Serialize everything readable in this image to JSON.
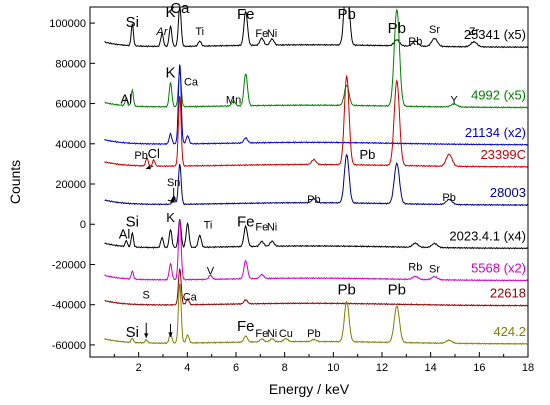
{
  "chart_data": {
    "type": "line",
    "xlabel": "Energy / keV",
    "ylabel": "Counts",
    "xlim": [
      0,
      18
    ],
    "ylim": [
      -66000,
      108000
    ],
    "x_ticks": [
      2,
      4,
      6,
      8,
      10,
      12,
      14,
      16,
      18
    ],
    "x_tick_labels": [
      "2",
      "4",
      "6",
      "8",
      "10",
      "12",
      "14",
      "16",
      "18"
    ],
    "y_ticks": [
      -60000,
      -40000,
      -20000,
      0,
      20000,
      40000,
      60000,
      80000,
      100000
    ],
    "y_tick_labels": [
      "-60000",
      "-40000",
      "-20000",
      "0",
      "20000",
      "40000",
      "60000",
      "80000",
      "100000"
    ],
    "series": [
      {
        "name": "25341 (x5)",
        "color": "#000000",
        "baseline": 88000,
        "peaks": [
          [
            1.74,
            11000
          ],
          [
            2.96,
            6500
          ],
          [
            3.31,
            10000
          ],
          [
            3.69,
            20000
          ],
          [
            4.51,
            2500
          ],
          [
            6.4,
            17000
          ],
          [
            7.06,
            3500
          ],
          [
            7.48,
            3000
          ],
          [
            10.55,
            38000
          ],
          [
            12.61,
            3000
          ],
          [
            13.37,
            2500
          ],
          [
            14.16,
            4000
          ],
          [
            15.78,
            2500
          ]
        ],
        "labels_y": [
          96000,
          96000,
          96000,
          96000,
          96000,
          96000,
          96000,
          96000,
          96000,
          96000,
          96000,
          96000,
          96000
        ]
      },
      {
        "name": "4992 (x5)",
        "color": "#008000",
        "baseline": 58000,
        "peaks": [
          [
            1.49,
            4000
          ],
          [
            1.74,
            8000
          ],
          [
            3.31,
            12000
          ],
          [
            3.69,
            18000
          ],
          [
            5.9,
            2500
          ],
          [
            6.4,
            16000
          ],
          [
            10.55,
            10000
          ],
          [
            12.61,
            48000
          ],
          [
            14.96,
            1500
          ]
        ],
        "labels_y": []
      },
      {
        "name": "21134 (x2)",
        "color": "#0000cc",
        "baseline": 39500,
        "peaks": [
          [
            3.31,
            5000
          ],
          [
            3.69,
            40000
          ],
          [
            4.01,
            4000
          ],
          [
            6.4,
            2500
          ]
        ],
        "labels_y": []
      },
      {
        "name": "23399C",
        "color": "#cc0000",
        "baseline": 28500,
        "peaks": [
          [
            2.34,
            4000
          ],
          [
            2.62,
            3000
          ],
          [
            3.69,
            35000
          ],
          [
            9.2,
            2500
          ],
          [
            10.55,
            44000
          ],
          [
            12.61,
            42000
          ],
          [
            14.76,
            6000
          ]
        ],
        "labels_y": []
      },
      {
        "name": "28003",
        "color": "#000080",
        "baseline": 9500,
        "peaks": [
          [
            3.44,
            4000
          ],
          [
            3.69,
            20000
          ],
          [
            9.2,
            2000
          ],
          [
            10.55,
            24000
          ],
          [
            12.61,
            20000
          ],
          [
            14.76,
            2500
          ]
        ],
        "labels_y": []
      },
      {
        "name": "2023.4.1 (x4)",
        "color": "#000000",
        "baseline": -12000,
        "peaks": [
          [
            1.49,
            3000
          ],
          [
            1.74,
            7000
          ],
          [
            2.96,
            5000
          ],
          [
            3.31,
            9000
          ],
          [
            3.69,
            14000
          ],
          [
            4.01,
            12000
          ],
          [
            4.51,
            6000
          ],
          [
            6.4,
            10000
          ],
          [
            7.06,
            2500
          ],
          [
            7.48,
            2500
          ],
          [
            13.37,
            2000
          ],
          [
            14.16,
            2000
          ]
        ],
        "labels_y": []
      },
      {
        "name": "5568 (x2)",
        "color": "#cc00cc",
        "baseline": -28000,
        "peaks": [
          [
            1.74,
            4000
          ],
          [
            3.31,
            8000
          ],
          [
            3.69,
            30000
          ],
          [
            4.95,
            2000
          ],
          [
            6.4,
            9000
          ],
          [
            7.06,
            2000
          ],
          [
            13.37,
            1500
          ],
          [
            14.16,
            1500
          ]
        ],
        "labels_y": []
      },
      {
        "name": "22618",
        "color": "#8b0000",
        "baseline": -40500,
        "peaks": [
          [
            3.69,
            18000
          ],
          [
            4.01,
            3000
          ],
          [
            6.4,
            2000
          ]
        ],
        "labels_y": []
      },
      {
        "name": "424.2",
        "color": "#808000",
        "baseline": -59500,
        "peaks": [
          [
            1.74,
            2000
          ],
          [
            2.31,
            1500
          ],
          [
            3.31,
            5000
          ],
          [
            3.69,
            30000
          ],
          [
            4.01,
            4000
          ],
          [
            6.4,
            3000
          ],
          [
            7.06,
            1500
          ],
          [
            7.48,
            1500
          ],
          [
            8.05,
            1500
          ],
          [
            9.2,
            1000
          ],
          [
            10.55,
            20000
          ],
          [
            12.61,
            18000
          ],
          [
            14.76,
            1500
          ]
        ],
        "labels_y": []
      }
    ],
    "annotations": [
      {
        "text": "Si",
        "x": 1.74,
        "y": 98000,
        "size": 15
      },
      {
        "text": "K",
        "x": 3.31,
        "y": 103000,
        "size": 15
      },
      {
        "text": "Ca",
        "x": 3.69,
        "y": 105000,
        "size": 15
      },
      {
        "text": "Ar",
        "x": 2.96,
        "y": 94000,
        "size": 11,
        "italic": true
      },
      {
        "text": "Ti",
        "x": 4.51,
        "y": 94000,
        "size": 11
      },
      {
        "text": "Fe",
        "x": 6.4,
        "y": 102000,
        "size": 15
      },
      {
        "text": "Fe",
        "x": 7.06,
        "y": 93000,
        "size": 11
      },
      {
        "text": "Ni",
        "x": 7.48,
        "y": 93000,
        "size": 11
      },
      {
        "text": "Pb",
        "x": 10.55,
        "y": 102000,
        "size": 15
      },
      {
        "text": "Pb",
        "x": 12.61,
        "y": 95000,
        "size": 15
      },
      {
        "text": "Rb",
        "x": 13.37,
        "y": 89000,
        "size": 11
      },
      {
        "text": "Sr",
        "x": 14.16,
        "y": 95000,
        "size": 11
      },
      {
        "text": "Zr",
        "x": 15.78,
        "y": 94000,
        "size": 11
      },
      {
        "text": "Al",
        "x": 1.49,
        "y": 60000,
        "size": 13
      },
      {
        "text": "K",
        "x": 3.31,
        "y": 73000,
        "size": 15
      },
      {
        "text": "Ca",
        "x": 4.15,
        "y": 69000,
        "size": 11
      },
      {
        "text": "Mn",
        "x": 5.9,
        "y": 60000,
        "size": 11
      },
      {
        "text": "Y",
        "x": 14.96,
        "y": 60000,
        "size": 11
      },
      {
        "text": "Pb",
        "x": 2.1,
        "y": 32500,
        "size": 11
      },
      {
        "text": "Cl",
        "x": 2.62,
        "y": 33000,
        "size": 13
      },
      {
        "text": "Pb",
        "x": 11.4,
        "y": 32500,
        "size": 13
      },
      {
        "text": "Pb",
        "x": 9.2,
        "y": 10500,
        "size": 11
      },
      {
        "text": "Pb",
        "x": 14.76,
        "y": 11500,
        "size": 11
      },
      {
        "text": "Sn",
        "x": 3.44,
        "y": 19000,
        "size": 11
      },
      {
        "text": "Si",
        "x": 1.74,
        "y": -1000,
        "size": 15
      },
      {
        "text": "Al",
        "x": 1.42,
        "y": -7000,
        "size": 13
      },
      {
        "text": "K",
        "x": 3.31,
        "y": 1000,
        "size": 13
      },
      {
        "text": "Ti",
        "x": 4.85,
        "y": -2000,
        "size": 11
      },
      {
        "text": "Fe",
        "x": 6.4,
        "y": -1000,
        "size": 15
      },
      {
        "text": "Fe",
        "x": 7.06,
        "y": -3000,
        "size": 11
      },
      {
        "text": "Ni",
        "x": 7.48,
        "y": -3000,
        "size": 11
      },
      {
        "text": "V",
        "x": 4.95,
        "y": -25000,
        "size": 11
      },
      {
        "text": "Rb",
        "x": 13.37,
        "y": -23000,
        "size": 11
      },
      {
        "text": "Sr",
        "x": 14.16,
        "y": -24000,
        "size": 11
      },
      {
        "text": "S",
        "x": 2.31,
        "y": -37000,
        "size": 11
      },
      {
        "text": "Ca",
        "x": 4.1,
        "y": -38000,
        "size": 11
      },
      {
        "text": "Pb",
        "x": 10.55,
        "y": -35000,
        "size": 15
      },
      {
        "text": "Pb",
        "x": 12.61,
        "y": -35000,
        "size": 15
      },
      {
        "text": "Si",
        "x": 1.74,
        "y": -56000,
        "size": 15
      },
      {
        "text": "Fe",
        "x": 6.4,
        "y": -53000,
        "size": 15
      },
      {
        "text": "Fe",
        "x": 7.06,
        "y": -56000,
        "size": 11
      },
      {
        "text": "Ni",
        "x": 7.48,
        "y": -56000,
        "size": 11
      },
      {
        "text": "Cu",
        "x": 8.05,
        "y": -56000,
        "size": 11
      },
      {
        "text": "Pb",
        "x": 9.2,
        "y": -56000,
        "size": 11
      }
    ],
    "arrows": [
      {
        "x1": 2.6,
        "y1": 29000,
        "x2": 2.3,
        "y2": 27500
      },
      {
        "x1": 3.44,
        "y1": 18000,
        "x2": 3.44,
        "y2": 11000
      },
      {
        "x1": 3.2,
        "y1": 12000,
        "x2": 3.5,
        "y2": 11000
      },
      {
        "x1": 2.31,
        "y1": -49000,
        "x2": 2.31,
        "y2": -56500
      },
      {
        "x1": 3.31,
        "y1": -49500,
        "x2": 3.31,
        "y2": -56000
      }
    ]
  }
}
